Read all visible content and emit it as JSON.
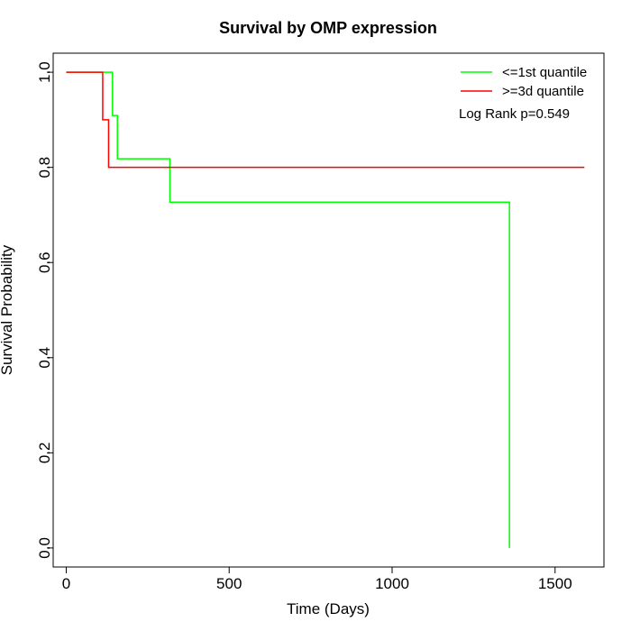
{
  "chart_data": {
    "type": "line",
    "title": "Survival by OMP expression",
    "xlabel": "Time (Days)",
    "ylabel": "Survival Probability",
    "xlim": [
      -40,
      1650
    ],
    "ylim": [
      -0.04,
      1.04
    ],
    "xticks": [
      0,
      500,
      1000,
      1500
    ],
    "yticks": [
      0.0,
      0.2,
      0.4,
      0.6,
      0.8,
      1.0
    ],
    "xtick_labels": [
      "0",
      "500",
      "1000",
      "1500"
    ],
    "ytick_labels": [
      "0.0",
      "0.2",
      "0.4",
      "0.6",
      "0.8",
      "1.0"
    ],
    "grid": false,
    "legend_position": "top-right",
    "annotation": "Log Rank p=0.549",
    "series": [
      {
        "name": "<=1st quantile",
        "color": "#00ff00",
        "step": true,
        "x": [
          0,
          142,
          157,
          318,
          1360,
          1360
        ],
        "y": [
          1.0,
          0.909,
          0.818,
          0.727,
          0.727,
          0.0
        ]
      },
      {
        "name": ">=3d quantile",
        "color": "#ff0000",
        "step": true,
        "x": [
          0,
          112,
          130,
          1590
        ],
        "y": [
          1.0,
          0.9,
          0.8,
          0.8
        ]
      }
    ]
  }
}
